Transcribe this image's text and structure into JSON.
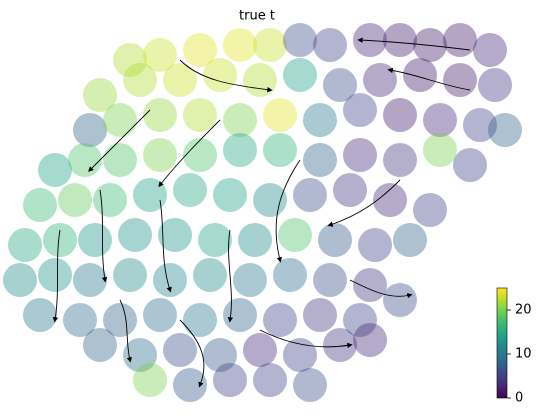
{
  "chart_data": {
    "type": "scatter",
    "title": "true t",
    "xlim": [
      0,
      543
    ],
    "ylim": [
      0,
      417
    ],
    "x": [
      130,
      160,
      200,
      240,
      270,
      300,
      330,
      370,
      400,
      430,
      460,
      490,
      100,
      140,
      180,
      220,
      260,
      300,
      340,
      380,
      420,
      460,
      495,
      90,
      120,
      160,
      200,
      240,
      280,
      320,
      360,
      400,
      440,
      480,
      505,
      55,
      85,
      120,
      160,
      200,
      240,
      280,
      320,
      360,
      400,
      440,
      470,
      40,
      75,
      110,
      150,
      190,
      230,
      270,
      310,
      350,
      390,
      430,
      25,
      60,
      95,
      135,
      175,
      215,
      255,
      295,
      335,
      375,
      410,
      20,
      55,
      90,
      130,
      170,
      210,
      250,
      290,
      330,
      370,
      400,
      40,
      80,
      120,
      160,
      200,
      240,
      280,
      320,
      360,
      100,
      140,
      180,
      220,
      260,
      300,
      340,
      370,
      150,
      190,
      230,
      270,
      310
    ],
    "y": [
      357,
      362,
      367,
      372,
      372,
      377,
      372,
      377,
      377,
      372,
      377,
      367,
      322,
      337,
      337,
      342,
      337,
      342,
      332,
      337,
      342,
      337,
      332,
      287,
      297,
      302,
      302,
      297,
      302,
      297,
      307,
      302,
      297,
      292,
      287,
      247,
      257,
      257,
      262,
      262,
      267,
      267,
      257,
      262,
      257,
      267,
      252,
      212,
      217,
      217,
      222,
      227,
      222,
      217,
      222,
      227,
      217,
      207,
      172,
      177,
      177,
      182,
      182,
      177,
      177,
      182,
      177,
      172,
      177,
      137,
      142,
      137,
      142,
      137,
      142,
      137,
      142,
      137,
      132,
      117,
      102,
      97,
      97,
      102,
      97,
      102,
      97,
      102,
      97,
      72,
      62,
      67,
      62,
      67,
      62,
      72,
      77,
      37,
      32,
      37,
      37,
      32
    ],
    "values": [
      22,
      23,
      24,
      24,
      23,
      6,
      5,
      3,
      2,
      2,
      2,
      3,
      21,
      22,
      23,
      23,
      22,
      14,
      6,
      3,
      2,
      2,
      4,
      8,
      20,
      21,
      22,
      20,
      24,
      10,
      5,
      2,
      3,
      5,
      8,
      14,
      18,
      18,
      20,
      18,
      15,
      16,
      8,
      3,
      4,
      20,
      5,
      17,
      19,
      17,
      14,
      15,
      14,
      12,
      6,
      4,
      3,
      5,
      15,
      16,
      13,
      13,
      13,
      14,
      12,
      18,
      7,
      5,
      8,
      12,
      13,
      10,
      12,
      11,
      12,
      10,
      9,
      6,
      4,
      6,
      10,
      9,
      8,
      9,
      10,
      8,
      5,
      4,
      5,
      8,
      9,
      6,
      7,
      3,
      5,
      4,
      3,
      20,
      7,
      5,
      5,
      6
    ],
    "colormap": "viridis",
    "clim": [
      0,
      25
    ],
    "cticks": [
      0,
      10,
      20
    ]
  }
}
